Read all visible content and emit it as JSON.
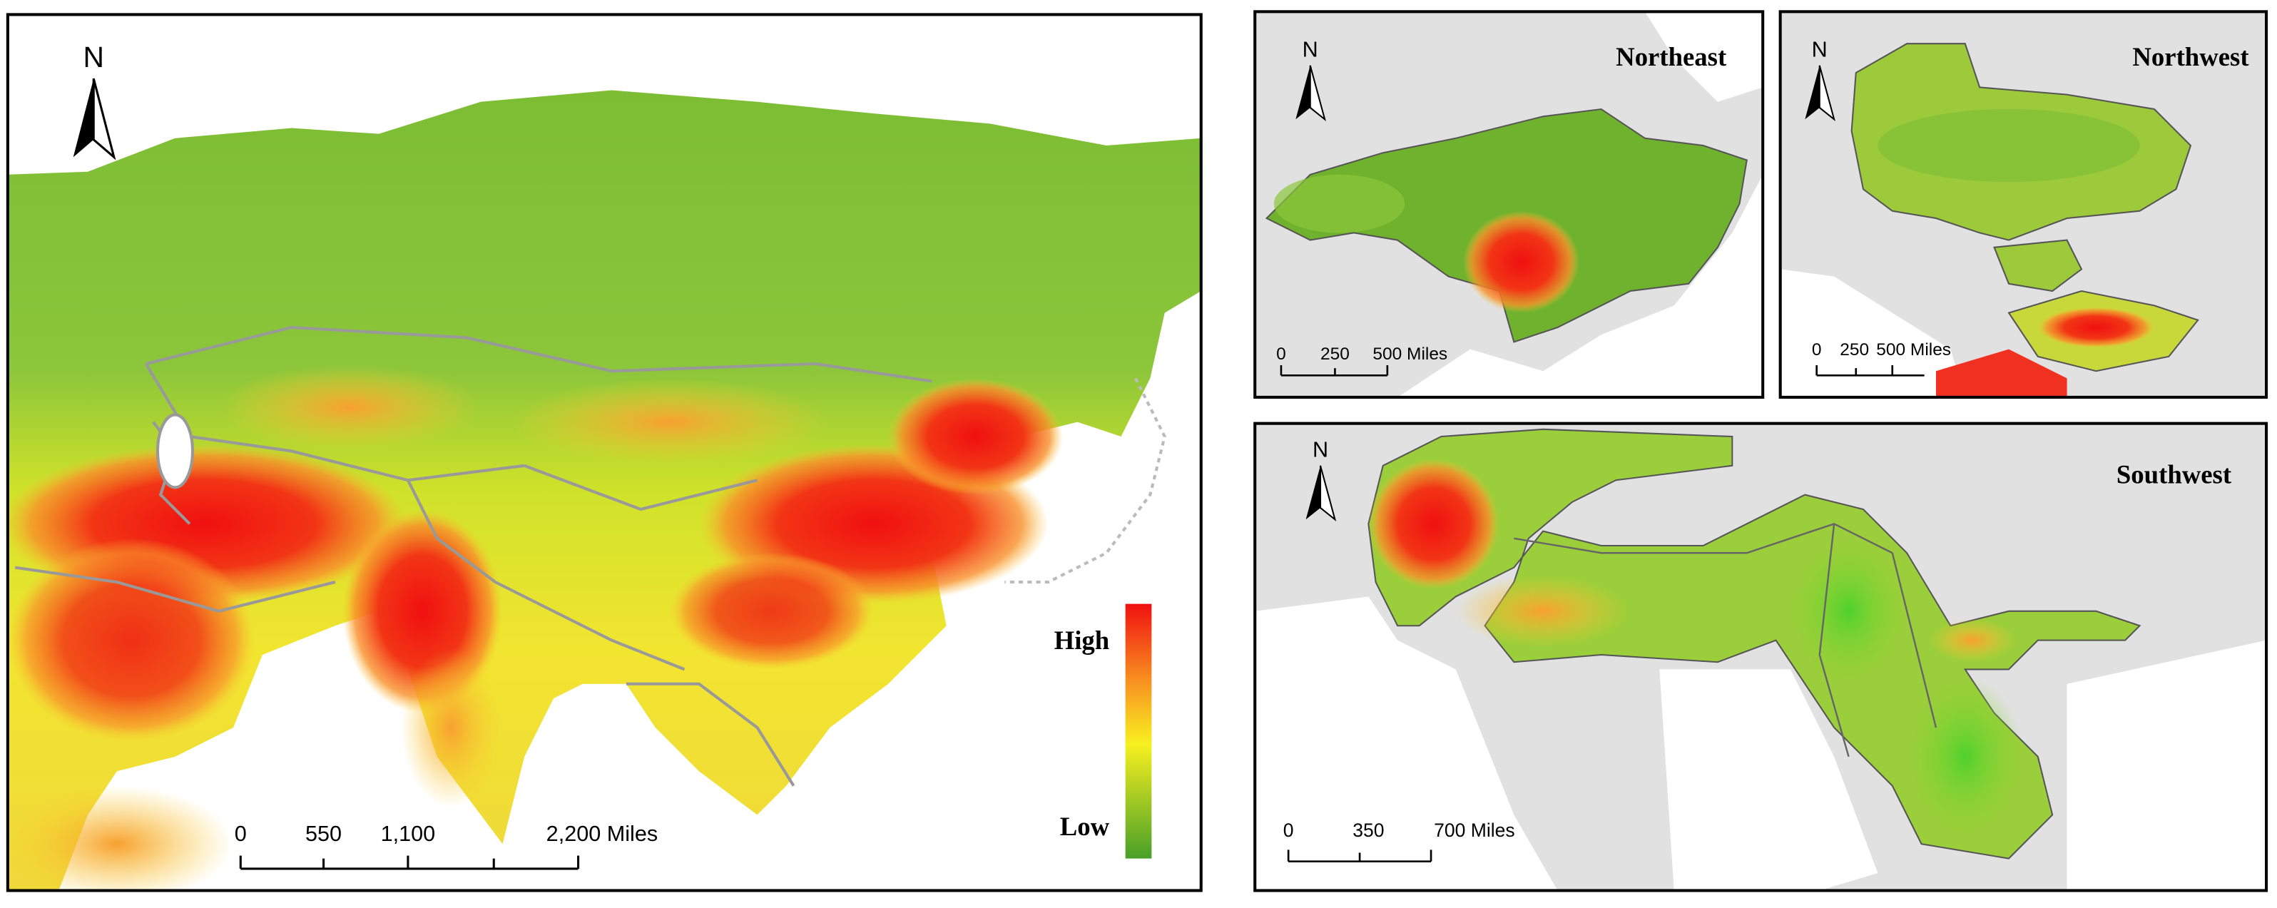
{
  "main_map": {
    "north": "N",
    "legend": {
      "high": "High",
      "low": "Low"
    },
    "scale_bar": [
      "0",
      "550",
      "1,100",
      "2,200 Miles"
    ]
  },
  "insets": [
    {
      "title": "Northeast",
      "north": "N",
      "scale_bar": [
        "0",
        "250",
        "500 Miles"
      ]
    },
    {
      "title": "Northwest",
      "north": "N",
      "scale_bar": [
        "0",
        "250",
        "500 Miles"
      ]
    },
    {
      "title": "Southwest",
      "north": "N",
      "scale_bar": [
        "0",
        "350",
        "700 Miles"
      ]
    }
  ]
}
